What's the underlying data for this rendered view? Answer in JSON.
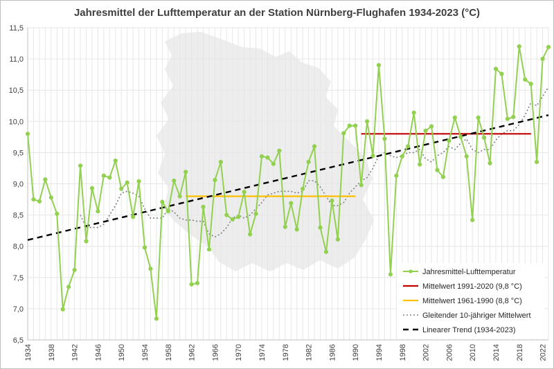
{
  "chart_data": {
    "type": "line",
    "title": "Jahresmittel der Lufttemperatur an der Station Nürnberg-Flughafen 1934-2023 (°C)",
    "xlabel": "",
    "ylabel": "",
    "xlim": [
      1934,
      2023
    ],
    "ylim": [
      6.5,
      11.5
    ],
    "y_ticks": [
      "6,5",
      "7,0",
      "7,5",
      "8,0",
      "8,5",
      "9,0",
      "9,5",
      "10,0",
      "10,5",
      "11,0",
      "11,5"
    ],
    "x_ticks": [
      "1934",
      "1938",
      "1942",
      "1946",
      "1950",
      "1954",
      "1958",
      "1962",
      "1966",
      "1970",
      "1974",
      "1978",
      "1982",
      "1986",
      "1990",
      "1994",
      "1998",
      "2002",
      "2006",
      "2010",
      "2014",
      "2018",
      "2022"
    ],
    "grid": true,
    "legend_position": "bottom-right",
    "colors": {
      "annual": "#92d050",
      "mean_1991_2020": "#c00000",
      "mean_1961_1990": "#ffc000",
      "moving_avg": "#808080",
      "trend": "#000000",
      "grid": "#e6e6e6",
      "background_map": "#ededed"
    },
    "series": [
      {
        "name": "Jahresmittel-Lufttemperatur",
        "style": "line-markers",
        "x": [
          1934,
          1935,
          1936,
          1937,
          1938,
          1939,
          1940,
          1941,
          1942,
          1943,
          1944,
          1945,
          1946,
          1947,
          1948,
          1949,
          1950,
          1951,
          1952,
          1953,
          1954,
          1955,
          1956,
          1957,
          1958,
          1959,
          1960,
          1961,
          1962,
          1963,
          1964,
          1965,
          1966,
          1967,
          1968,
          1969,
          1970,
          1971,
          1972,
          1973,
          1974,
          1975,
          1976,
          1977,
          1978,
          1979,
          1980,
          1981,
          1982,
          1983,
          1984,
          1985,
          1986,
          1987,
          1988,
          1989,
          1990,
          1991,
          1992,
          1993,
          1994,
          1995,
          1996,
          1997,
          1998,
          1999,
          2000,
          2001,
          2002,
          2003,
          2004,
          2005,
          2006,
          2007,
          2008,
          2009,
          2010,
          2011,
          2012,
          2013,
          2014,
          2015,
          2016,
          2017,
          2018,
          2019,
          2020,
          2021,
          2022,
          2023
        ],
        "y": [
          9.8,
          8.75,
          8.72,
          9.07,
          8.78,
          8.52,
          6.99,
          7.35,
          7.62,
          9.29,
          8.08,
          8.93,
          8.56,
          9.13,
          9.1,
          9.37,
          8.92,
          9.02,
          8.47,
          9.04,
          7.98,
          7.64,
          6.84,
          8.71,
          8.56,
          9.05,
          8.8,
          9.19,
          7.39,
          7.41,
          8.63,
          7.95,
          9.06,
          9.35,
          8.5,
          8.43,
          8.47,
          8.87,
          8.19,
          8.52,
          9.44,
          9.42,
          9.32,
          9.53,
          8.31,
          8.69,
          8.27,
          8.92,
          9.35,
          9.6,
          8.3,
          7.91,
          8.73,
          8.11,
          9.81,
          9.93,
          9.93,
          8.98,
          10.0,
          9.45,
          10.9,
          9.72,
          7.55,
          9.13,
          9.44,
          9.6,
          10.14,
          9.31,
          9.85,
          9.92,
          9.22,
          9.11,
          9.69,
          10.06,
          9.75,
          9.44,
          8.42,
          10.06,
          9.74,
          9.33,
          10.84,
          10.76,
          10.04,
          10.07,
          11.2,
          10.67,
          10.6,
          9.35,
          11.0,
          11.19
        ]
      },
      {
        "name": "Mittelwert 1991-2020 (9,8 °C)",
        "style": "solid",
        "x": [
          1991,
          2020
        ],
        "y": [
          9.8,
          9.8
        ]
      },
      {
        "name": "Mittelwert 1961-1990 (8,8 °C)",
        "style": "solid",
        "x": [
          1961,
          1990
        ],
        "y": [
          8.8,
          8.8
        ]
      },
      {
        "name": "Gleitender 10-jähriger Mittelwert",
        "style": "dotted",
        "x": [
          1943,
          1944,
          1945,
          1946,
          1947,
          1948,
          1949,
          1950,
          1951,
          1952,
          1953,
          1954,
          1955,
          1956,
          1957,
          1958,
          1959,
          1960,
          1961,
          1962,
          1963,
          1964,
          1965,
          1966,
          1967,
          1968,
          1969,
          1970,
          1971,
          1972,
          1973,
          1974,
          1975,
          1976,
          1977,
          1978,
          1979,
          1980,
          1981,
          1982,
          1983,
          1984,
          1985,
          1986,
          1987,
          1988,
          1989,
          1990,
          1991,
          1992,
          1993,
          1994,
          1995,
          1996,
          1997,
          1998,
          1999,
          2000,
          2001,
          2002,
          2003,
          2004,
          2005,
          2006,
          2007,
          2008,
          2009,
          2010,
          2011,
          2012,
          2013,
          2014,
          2015,
          2016,
          2017,
          2018,
          2019,
          2020,
          2021,
          2022,
          2023
        ],
        "y": [
          8.5,
          8.3,
          8.3,
          8.3,
          8.35,
          8.5,
          8.65,
          8.85,
          8.88,
          8.85,
          8.8,
          8.6,
          8.45,
          8.45,
          8.45,
          8.6,
          8.55,
          8.45,
          8.42,
          8.42,
          8.4,
          8.4,
          8.2,
          8.15,
          8.2,
          8.3,
          8.45,
          8.5,
          8.45,
          8.5,
          8.6,
          8.7,
          8.82,
          8.85,
          8.88,
          8.88,
          8.88,
          8.85,
          8.88,
          9.05,
          9.05,
          8.95,
          8.8,
          8.65,
          8.65,
          8.7,
          8.85,
          8.95,
          9.05,
          9.1,
          9.25,
          9.45,
          9.5,
          9.45,
          9.42,
          9.45,
          9.5,
          9.5,
          9.55,
          9.4,
          9.35,
          9.45,
          9.5,
          9.6,
          9.55,
          9.65,
          9.72,
          9.55,
          9.5,
          9.55,
          9.55,
          9.7,
          9.8,
          9.85,
          9.85,
          9.95,
          10.1,
          10.3,
          10.25,
          10.4,
          10.55
        ]
      },
      {
        "name": "Linearer Trend (1934-2023)",
        "style": "dashed",
        "x": [
          1934,
          2023
        ],
        "y": [
          8.1,
          10.1
        ]
      }
    ]
  }
}
